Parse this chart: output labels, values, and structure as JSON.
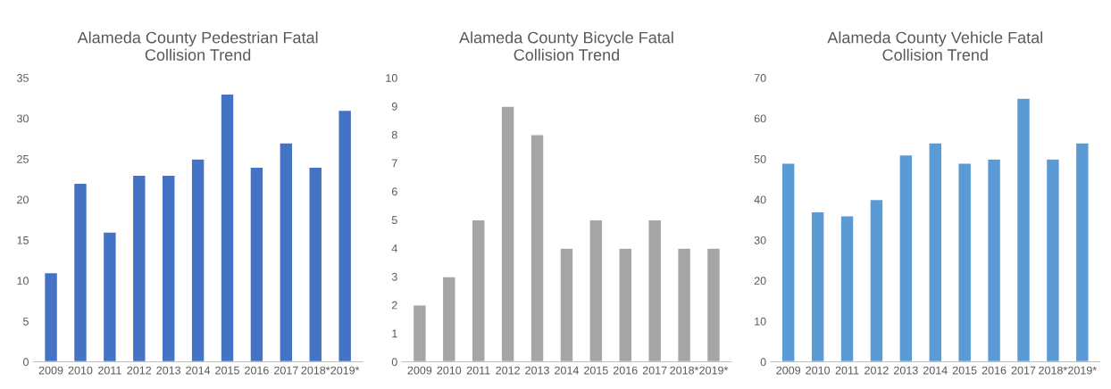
{
  "chart_data": [
    {
      "type": "bar",
      "title": "Alameda County Pedestrian Fatal Collision Trend",
      "categories": [
        "2009",
        "2010",
        "2011",
        "2012",
        "2013",
        "2014",
        "2015",
        "2016",
        "2017",
        "2018*",
        "2019*"
      ],
      "values": [
        11,
        22,
        16,
        23,
        23,
        25,
        33,
        24,
        27,
        24,
        31
      ],
      "color": "#4472c4",
      "ylim": [
        0,
        35
      ],
      "yticks": [
        0,
        5,
        10,
        15,
        20,
        25,
        30,
        35
      ],
      "grid": false,
      "legend": false
    },
    {
      "type": "bar",
      "title": "Alameda County Bicycle Fatal Collision Trend",
      "categories": [
        "2009",
        "2010",
        "2011",
        "2012",
        "2013",
        "2014",
        "2015",
        "2016",
        "2017",
        "2018*",
        "2019*"
      ],
      "values": [
        2,
        3,
        5,
        9,
        8,
        4,
        5,
        4,
        5,
        4,
        4
      ],
      "color": "#a5a5a5",
      "ylim": [
        0,
        10
      ],
      "yticks": [
        0,
        1,
        2,
        3,
        4,
        5,
        6,
        7,
        8,
        9,
        10
      ],
      "grid": false,
      "legend": false
    },
    {
      "type": "bar",
      "title": "Alameda County Vehicle Fatal Collision Trend",
      "categories": [
        "2009",
        "2010",
        "2011",
        "2012",
        "2013",
        "2014",
        "2015",
        "2016",
        "2017",
        "2018*",
        "2019*"
      ],
      "values": [
        49,
        37,
        36,
        40,
        51,
        54,
        49,
        50,
        65,
        50,
        54
      ],
      "color": "#5b9bd5",
      "ylim": [
        0,
        70
      ],
      "yticks": [
        0,
        10,
        20,
        30,
        40,
        50,
        60,
        70
      ],
      "grid": false,
      "legend": false
    }
  ]
}
